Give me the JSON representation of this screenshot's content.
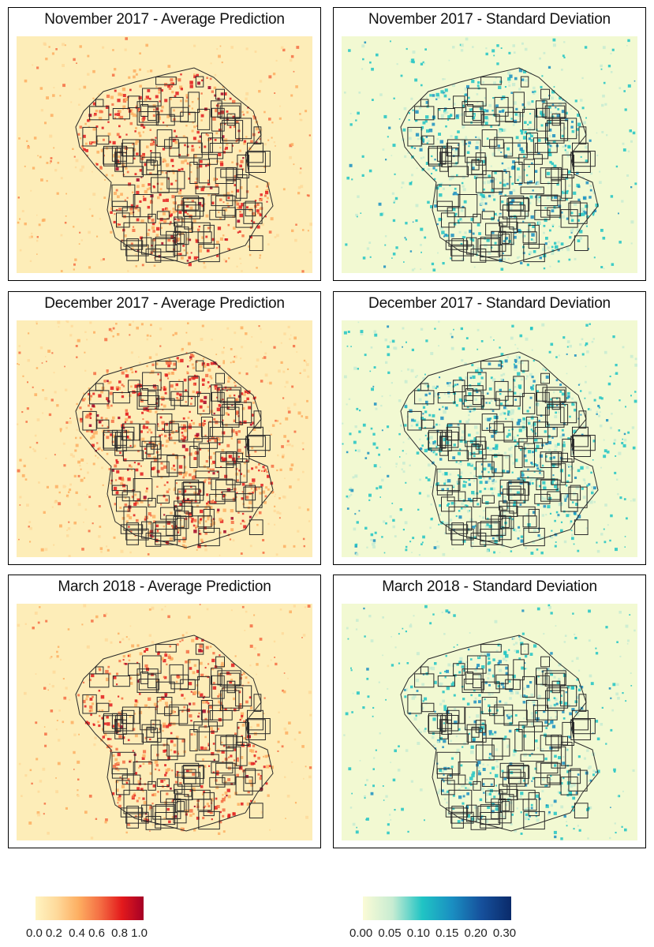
{
  "panels": [
    {
      "title": "November 2017 - Average Prediction",
      "variable": "prediction",
      "month": "nov"
    },
    {
      "title": "November 2017 - Standard Deviation",
      "variable": "sd",
      "month": "nov"
    },
    {
      "title": "December 2017 - Average Prediction",
      "variable": "prediction",
      "month": "dec"
    },
    {
      "title": "December 2017 - Standard Deviation",
      "variable": "sd",
      "month": "dec"
    },
    {
      "title": "March 2018 - Average Prediction",
      "variable": "prediction",
      "month": "mar"
    },
    {
      "title": "March 2018 - Standard Deviation",
      "variable": "sd",
      "month": "mar"
    }
  ],
  "legends": {
    "prediction": {
      "ticks": [
        "0.0",
        "0.2",
        "0.4",
        "0.6",
        "0.8",
        "1.0"
      ],
      "colors": [
        "#fff4c2",
        "#fed99a",
        "#fdae61",
        "#f46d43",
        "#e31a1c",
        "#a50026"
      ]
    },
    "sd": {
      "ticks": [
        "0.00",
        "0.05",
        "0.10",
        "0.15",
        "0.20",
        "0.30"
      ],
      "colors": [
        "#fbfbd6",
        "#c7ecd2",
        "#20c4c4",
        "#1a8fc2",
        "#16509c",
        "#0a2a6a"
      ]
    }
  },
  "colors": {
    "prediction_background": "#fdedb8",
    "sd_background": "#f2f9d2",
    "boundary": "#2a2a2a"
  }
}
